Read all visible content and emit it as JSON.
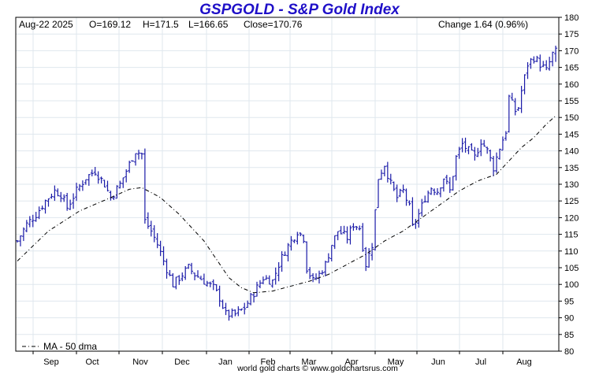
{
  "header": {
    "title": "GSPGOLD - S&P Gold Index",
    "date": "Aug-22  2025",
    "open": "O=169.12",
    "high": "H=171.5",
    "low": "L=166.65",
    "close": "Close=170.76",
    "change": "Change 1.64 (0.96%)"
  },
  "footer": {
    "credit": "world gold charts © www.goldchartsrus.com"
  },
  "legend": {
    "ma_label": "MA - 50 dma"
  },
  "colors": {
    "title": "#1f10c8",
    "bars": "#1a1aa8",
    "ma": "#000000",
    "grid": "#dfe7ee",
    "frame": "#000000"
  },
  "chart_data": {
    "type": "ohlc",
    "title": "GSPGOLD - S&P Gold Index",
    "xlabel": "",
    "ylabel": "",
    "ylim": [
      80,
      180
    ],
    "y_ticks": [
      80,
      85,
      90,
      95,
      100,
      105,
      110,
      115,
      120,
      125,
      130,
      135,
      140,
      145,
      150,
      155,
      160,
      165,
      170,
      175,
      180
    ],
    "x_ticks": [
      "Sep",
      "Oct",
      "Nov",
      "Dec",
      "Jan",
      "Feb",
      "Mar",
      "Apr",
      "May",
      "Jun",
      "Jul",
      "Aug"
    ],
    "grid": true,
    "legend_position": "bottom-left",
    "anchors": [
      [
        0,
        113
      ],
      [
        3,
        118
      ],
      [
        6,
        121
      ],
      [
        9,
        125
      ],
      [
        12,
        128
      ],
      [
        14,
        127
      ],
      [
        16,
        123
      ],
      [
        19,
        128
      ],
      [
        22,
        132
      ],
      [
        25,
        134
      ],
      [
        28,
        130
      ],
      [
        30,
        126
      ],
      [
        33,
        130
      ],
      [
        35,
        134
      ],
      [
        38,
        140
      ],
      [
        40,
        139
      ],
      [
        41,
        119
      ],
      [
        43,
        116
      ],
      [
        45,
        112
      ],
      [
        47,
        107
      ],
      [
        50,
        100
      ],
      [
        53,
        103
      ],
      [
        55,
        105
      ],
      [
        57,
        103
      ],
      [
        60,
        101
      ],
      [
        63,
        99
      ],
      [
        65,
        96
      ],
      [
        67,
        91
      ],
      [
        70,
        91
      ],
      [
        73,
        93
      ],
      [
        75,
        96
      ],
      [
        77,
        99
      ],
      [
        79,
        102
      ],
      [
        82,
        101
      ],
      [
        84,
        106
      ],
      [
        86,
        110
      ],
      [
        88,
        113
      ],
      [
        90,
        116
      ],
      [
        92,
        114
      ],
      [
        93,
        105
      ],
      [
        95,
        101
      ],
      [
        97,
        103
      ],
      [
        99,
        106
      ],
      [
        101,
        112
      ],
      [
        103,
        116
      ],
      [
        106,
        114
      ],
      [
        108,
        118
      ],
      [
        110,
        117
      ],
      [
        112,
        106
      ],
      [
        114,
        112
      ],
      [
        116,
        132
      ],
      [
        118,
        136
      ],
      [
        120,
        130
      ],
      [
        122,
        126
      ],
      [
        124,
        128
      ],
      [
        126,
        123
      ],
      [
        127,
        117
      ],
      [
        129,
        121
      ],
      [
        131,
        126
      ],
      [
        133,
        129
      ],
      [
        135,
        128
      ],
      [
        137,
        132
      ],
      [
        139,
        128
      ],
      [
        141,
        138
      ],
      [
        143,
        142
      ],
      [
        145,
        140
      ],
      [
        147,
        138
      ],
      [
        149,
        143
      ],
      [
        151,
        140
      ],
      [
        153,
        135
      ],
      [
        155,
        141
      ],
      [
        157,
        146
      ],
      [
        158,
        156
      ],
      [
        160,
        152
      ],
      [
        161,
        153
      ],
      [
        162,
        158
      ],
      [
        164,
        166
      ],
      [
        166,
        168
      ],
      [
        168,
        166
      ],
      [
        170,
        164
      ],
      [
        172,
        169
      ],
      [
        173,
        171
      ]
    ],
    "ma_anchors": [
      [
        0,
        107
      ],
      [
        10,
        116
      ],
      [
        20,
        122
      ],
      [
        30,
        126
      ],
      [
        36,
        128.5
      ],
      [
        40,
        129
      ],
      [
        46,
        126
      ],
      [
        52,
        121
      ],
      [
        60,
        113
      ],
      [
        64,
        107.5
      ],
      [
        68,
        102
      ],
      [
        72,
        99
      ],
      [
        76,
        97.5
      ],
      [
        82,
        98
      ],
      [
        88,
        99.5
      ],
      [
        94,
        101
      ],
      [
        100,
        103
      ],
      [
        106,
        106
      ],
      [
        112,
        109
      ],
      [
        118,
        113
      ],
      [
        124,
        116
      ],
      [
        130,
        120
      ],
      [
        136,
        124
      ],
      [
        142,
        128
      ],
      [
        148,
        131
      ],
      [
        154,
        133
      ],
      [
        158,
        137
      ],
      [
        162,
        141
      ],
      [
        166,
        144
      ],
      [
        170,
        148
      ],
      [
        173,
        150.5
      ]
    ],
    "series": [
      {
        "name": "MA - 50 dma",
        "type": "line",
        "source": "ma_anchors"
      }
    ]
  }
}
